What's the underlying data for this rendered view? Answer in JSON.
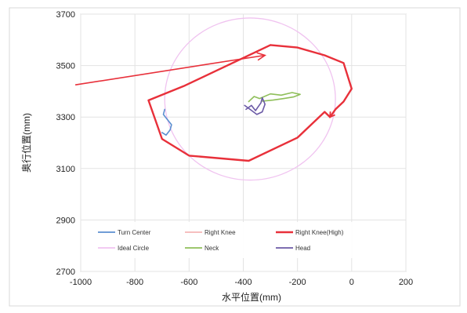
{
  "chart_data": {
    "type": "line",
    "xlabel": "水平位置(mm)",
    "ylabel": "奥行位置(mm)",
    "xlim": [
      -1000,
      200
    ],
    "ylim": [
      2700,
      3700
    ],
    "x_ticks": [
      -1000,
      -800,
      -600,
      -400,
      -200,
      0,
      200
    ],
    "y_ticks": [
      2700,
      2900,
      3100,
      3300,
      3500,
      3700
    ],
    "x_tick_labels": [
      "-1000",
      "-800",
      "-600",
      "-400",
      "-200",
      "0",
      "200"
    ],
    "y_tick_labels": [
      "2700",
      "2900",
      "3100",
      "3300",
      "3500",
      "3700"
    ],
    "grid": true,
    "legend_position": "bottom-inside",
    "series": [
      {
        "name": "Turn Center",
        "color": "#5b8fd0",
        "x": [
          -700,
          -685,
          -670,
          -665,
          -680,
          -695,
          -690
        ],
        "y": [
          3240,
          3230,
          3250,
          3270,
          3290,
          3310,
          3330
        ]
      },
      {
        "name": "Right Knee",
        "color": "#f4b6b6",
        "x": [
          -750,
          -620,
          -500,
          -400,
          -300
        ],
        "y": [
          3365,
          3420,
          3480,
          3530,
          3580
        ]
      },
      {
        "name": "Right Knee(High)",
        "color": "#e8303a",
        "x": [
          -300,
          -200,
          -100,
          -30,
          0,
          -30,
          -60,
          -80,
          -100,
          -200,
          -380,
          -600,
          -700,
          -750,
          -620,
          -500,
          -400,
          -300
        ],
        "y": [
          3580,
          3570,
          3540,
          3510,
          3410,
          3360,
          3330,
          3300,
          3320,
          3220,
          3130,
          3150,
          3215,
          3365,
          3420,
          3480,
          3530,
          3580
        ]
      },
      {
        "name": "Ideal Circle",
        "color": "#f0c3f0",
        "type": "circle",
        "center": [
          -375,
          3370
        ],
        "radius": 315
      },
      {
        "name": "Neck",
        "color": "#8fbf5a",
        "x": [
          -380,
          -360,
          -340,
          -300,
          -260,
          -220,
          -190,
          -215,
          -250,
          -290,
          -330
        ],
        "y": [
          3360,
          3380,
          3372,
          3390,
          3385,
          3395,
          3388,
          3378,
          3372,
          3366,
          3362
        ]
      },
      {
        "name": "Head",
        "color": "#6b5aa6",
        "x": [
          -390,
          -370,
          -355,
          -345,
          -335,
          -330,
          -320,
          -330,
          -350,
          -375,
          -395
        ],
        "y": [
          3330,
          3345,
          3325,
          3340,
          3355,
          3375,
          3350,
          3320,
          3310,
          3330,
          3345
        ]
      }
    ],
    "annotations": [
      {
        "type": "arrow",
        "color": "#e8303a",
        "from": [
          -1020,
          3425
        ],
        "to": [
          -320,
          3540
        ]
      }
    ]
  }
}
